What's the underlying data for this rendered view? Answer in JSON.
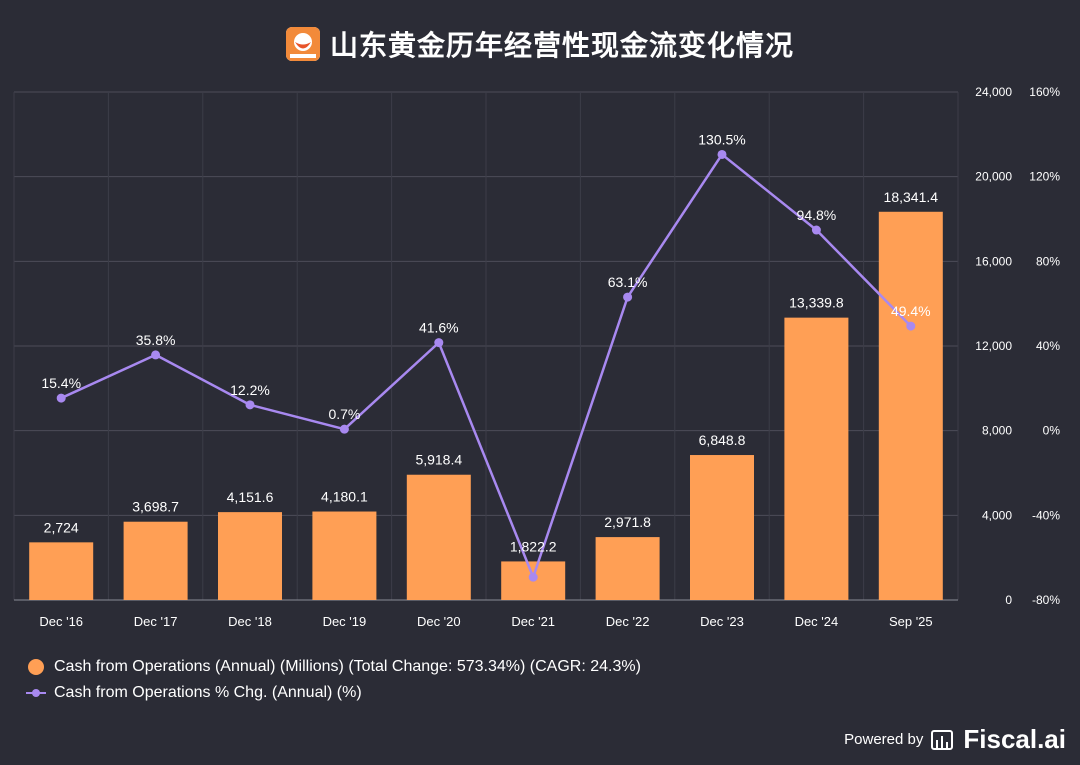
{
  "header": {
    "title": "山东黄金历年经营性现金流变化情况",
    "logo_icon": "shandong-gold-logo"
  },
  "chart_data": {
    "type": "bar+line",
    "categories": [
      "Dec '16",
      "Dec '17",
      "Dec '18",
      "Dec '19",
      "Dec '20",
      "Dec '21",
      "Dec '22",
      "Dec '23",
      "Dec '24",
      "Sep '25"
    ],
    "series": [
      {
        "name": "Cash from Operations (Annual) (Millions) (Total Change: 573.34%) (CAGR: 24.3%)",
        "type": "bar",
        "axis": "left",
        "color": "#ff9f55",
        "values": [
          2724,
          3698.7,
          4151.6,
          4180.1,
          5918.4,
          1822.2,
          2971.8,
          6848.8,
          13339.8,
          18341.4
        ],
        "labels": [
          "2,724",
          "3,698.7",
          "4,151.6",
          "4,180.1",
          "5,918.4",
          "1,822.2",
          "2,971.8",
          "6,848.8",
          "13,339.8",
          "18,341.4"
        ]
      },
      {
        "name": "Cash from Operations % Chg. (Annual) (%)",
        "type": "line",
        "axis": "right",
        "color": "#a889f0",
        "values": [
          15.4,
          35.8,
          12.2,
          0.7,
          41.6,
          -69.2,
          63.1,
          130.5,
          94.8,
          49.4
        ],
        "labels": [
          "15.4%",
          "35.8%",
          "12.2%",
          "0.7%",
          "41.6%",
          "",
          "63.1%",
          "130.5%",
          "94.8%",
          "49.4%"
        ]
      }
    ],
    "left_axis": {
      "range": [
        0,
        24000
      ],
      "ticks": [
        0,
        4000,
        8000,
        12000,
        16000,
        20000,
        24000
      ],
      "tick_labels": [
        "0",
        "4,000",
        "8,000",
        "12,000",
        "16,000",
        "20,000",
        "24,000"
      ]
    },
    "right_axis": {
      "range": [
        -80,
        160
      ],
      "ticks": [
        -80,
        -40,
        0,
        40,
        80,
        120,
        160
      ],
      "tick_labels": [
        "-80%",
        "-40%",
        "0%",
        "40%",
        "80%",
        "120%",
        "160%"
      ]
    },
    "grid": true,
    "legend_position": "bottom-left"
  },
  "footer": {
    "powered_by": "Powered by",
    "brand": "Fiscal.ai",
    "brand_icon": "fiscal-ai-logo"
  }
}
